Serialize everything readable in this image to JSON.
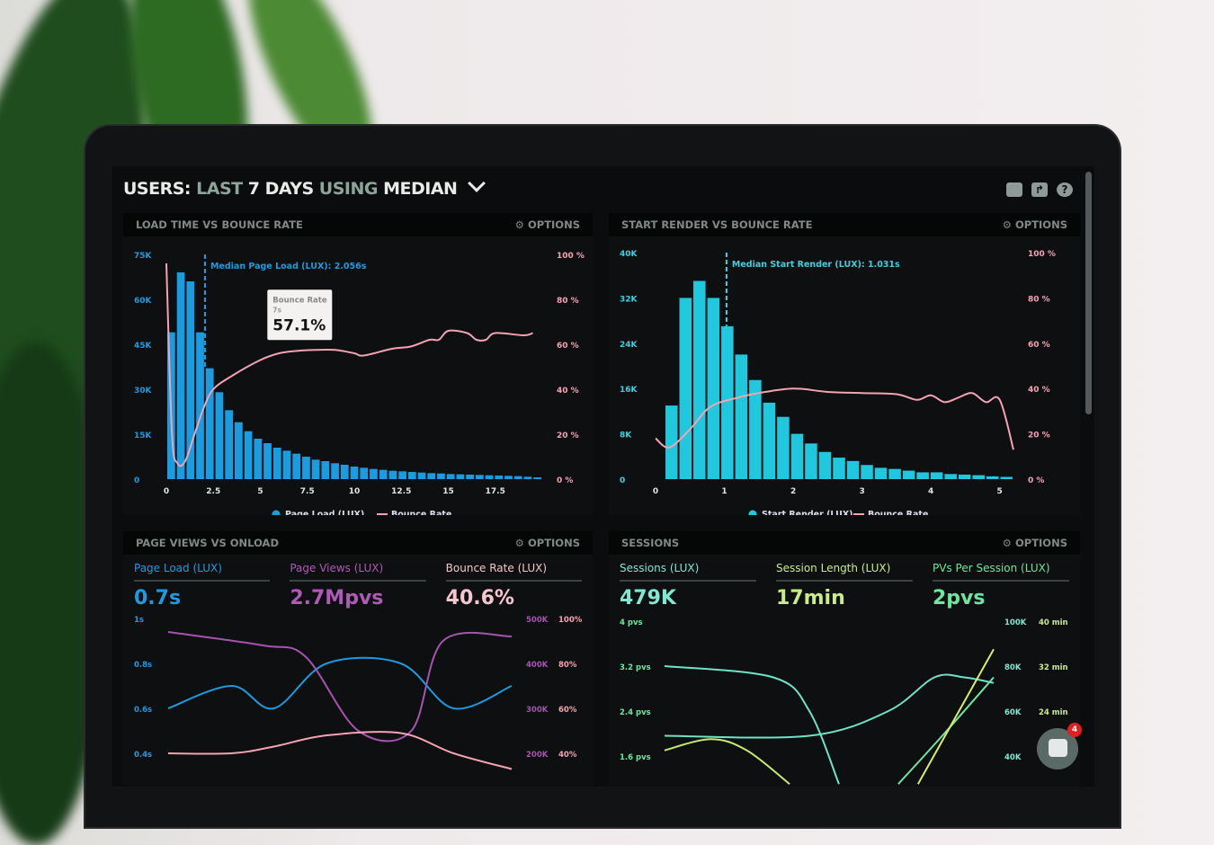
{
  "header": {
    "title_a": "USERS:",
    "title_b": "LAST",
    "title_c": "7 DAYS",
    "title_d": "USING",
    "title_e": "MEDIAN",
    "icons": [
      "monitor-icon",
      "share-icon",
      "help-icon"
    ]
  },
  "options_label": "OPTIONS",
  "panels": {
    "load": {
      "title": "LOAD TIME VS BOUNCE RATE"
    },
    "render": {
      "title": "START RENDER VS BOUNCE RATE"
    },
    "pageviews": {
      "title": "PAGE VIEWS VS ONLOAD",
      "kpis": [
        {
          "label": "Page Load (LUX)",
          "value": "0.7s",
          "color": "#1e9be0"
        },
        {
          "label": "Page Views (LUX)",
          "value": "2.7Mpvs",
          "color": "#b05ab8"
        },
        {
          "label": "Bounce Rate (LUX)",
          "value": "40.6%",
          "color": "#f6c6d0"
        }
      ]
    },
    "sessions": {
      "title": "SESSIONS",
      "kpis": [
        {
          "label": "Sessions (LUX)",
          "value": "479K",
          "color": "#7fe8d2"
        },
        {
          "label": "Session Length (LUX)",
          "value": "17min",
          "color": "#c9ec8a"
        },
        {
          "label": "PVs Per Session (LUX)",
          "value": "2pvs",
          "color": "#6ee6a0"
        }
      ]
    }
  },
  "chat": {
    "badge": "4"
  },
  "chart_data": [
    {
      "type": "bar",
      "title": "LOAD TIME VS BOUNCE RATE",
      "xlim": [
        0,
        20
      ],
      "ylim": [
        0,
        75000
      ],
      "y2lim": [
        0,
        100
      ],
      "xticks": [
        "0",
        "2.5",
        "5",
        "7.5",
        "10",
        "12.5",
        "15",
        "17.5"
      ],
      "yticks": [
        "0",
        "15K",
        "30K",
        "45K",
        "60K",
        "75K"
      ],
      "y2ticks": [
        "0 %",
        "20 %",
        "40 %",
        "60 %",
        "80 %",
        "100 %"
      ],
      "legend": [
        "Page Load (LUX)",
        "Bounce Rate"
      ],
      "annotation": "Median Page Load (LUX): 2.056s",
      "median": 2.056,
      "tooltip": {
        "label": "Bounce Rate",
        "x": "7s",
        "value": "57.1%"
      },
      "bar_colors": "#1a9ce0",
      "line_color": "#f4a3b4",
      "bars": [
        49000,
        69000,
        66000,
        49000,
        37000,
        29000,
        23000,
        19000,
        16000,
        13500,
        12000,
        10500,
        9500,
        8500,
        7500,
        6500,
        6000,
        5300,
        4800,
        4200,
        3800,
        3400,
        3100,
        2800,
        2600,
        2400,
        2200,
        2000,
        1900,
        1700,
        1600,
        1500,
        1400,
        1300,
        1200,
        1100,
        1000,
        800,
        600
      ],
      "line": [
        [
          0,
          96
        ],
        [
          0.3,
          20
        ],
        [
          0.6,
          7
        ],
        [
          1,
          8
        ],
        [
          1.5,
          20
        ],
        [
          2,
          32
        ],
        [
          2.5,
          40
        ],
        [
          3.5,
          46
        ],
        [
          5,
          53
        ],
        [
          6,
          56
        ],
        [
          7,
          57.1
        ],
        [
          8,
          57.5
        ],
        [
          9,
          57.5
        ],
        [
          10,
          56
        ],
        [
          10.5,
          55
        ],
        [
          12,
          58
        ],
        [
          13,
          59
        ],
        [
          14,
          62
        ],
        [
          14.5,
          62
        ],
        [
          15,
          66
        ],
        [
          16,
          65
        ],
        [
          16.5,
          62
        ],
        [
          17,
          62
        ],
        [
          17.5,
          65
        ],
        [
          19,
          64
        ],
        [
          19.5,
          65
        ]
      ]
    },
    {
      "type": "bar",
      "title": "START RENDER VS BOUNCE RATE",
      "xlim": [
        0,
        5.2
      ],
      "ylim": [
        0,
        40000
      ],
      "y2lim": [
        0,
        100
      ],
      "xticks": [
        "0",
        "1",
        "2",
        "3",
        "4",
        "5"
      ],
      "yticks": [
        "0",
        "8K",
        "16K",
        "24K",
        "32K",
        "40K"
      ],
      "y2ticks": [
        "0 %",
        "20 %",
        "40 %",
        "60 %",
        "80 %",
        "100 %"
      ],
      "legend": [
        "Start Render (LUX)",
        "Bounce Rate"
      ],
      "annotation": "Median Start Render (LUX): 1.031s",
      "median": 1.031,
      "bar_colors": "#1fc8dc",
      "line_color": "#f4a3b4",
      "bars": [
        13000,
        32000,
        35000,
        32000,
        27000,
        22000,
        17500,
        13500,
        11000,
        8000,
        6300,
        4800,
        3800,
        3200,
        2500,
        2000,
        1800,
        1500,
        1200,
        1200,
        900,
        800,
        700,
        500,
        400
      ],
      "line": [
        [
          0,
          18
        ],
        [
          0.2,
          14
        ],
        [
          0.5,
          22
        ],
        [
          0.8,
          32
        ],
        [
          1.2,
          36
        ],
        [
          1.5,
          38
        ],
        [
          2,
          40
        ],
        [
          2.5,
          38.5
        ],
        [
          3,
          38
        ],
        [
          3.5,
          37.5
        ],
        [
          3.8,
          35
        ],
        [
          4,
          37
        ],
        [
          4.2,
          34
        ],
        [
          4.4,
          36
        ],
        [
          4.6,
          38
        ],
        [
          4.8,
          34
        ],
        [
          5,
          35
        ],
        [
          5.2,
          13
        ]
      ]
    },
    {
      "type": "line",
      "title": "PAGE VIEWS VS ONLOAD",
      "ylim": [
        0.4,
        1
      ],
      "yticks": [
        "0.4s",
        "0.6s",
        "0.8s",
        "1s"
      ],
      "y2ticks": [
        "200K",
        "300K",
        "400K",
        "500K"
      ],
      "y3ticks": [
        "40%",
        "60%",
        "80%",
        "100%"
      ],
      "series": [
        {
          "color": "#1e9be0",
          "values": [
            0.6,
            0.7,
            0.6,
            0.8,
            0.8,
            0.6,
            0.7
          ]
        },
        {
          "color": "#a554b0",
          "values": [
            470000,
            440000,
            415000,
            250000,
            250000,
            450000,
            460000
          ],
          "axis": "y2"
        },
        {
          "color": "#f4a3b4",
          "values": [
            40,
            40,
            43,
            48,
            49,
            40,
            33
          ],
          "axis": "y3"
        }
      ]
    },
    {
      "type": "line",
      "title": "SESSIONS",
      "ylim": [
        1.6,
        4
      ],
      "yticks": [
        "1.6 pvs",
        "2.4 pvs",
        "3.2 pvs",
        "4 pvs"
      ],
      "y2ticks": [
        "40K",
        "60K",
        "80K",
        "100K"
      ],
      "y3ticks": [
        "24 min",
        "32 min",
        "40 min"
      ],
      "series": [
        {
          "color": "#6fe3c5",
          "values": [
            [
              0,
              3.2
            ],
            [
              3.3,
              3.0
            ],
            [
              4.4,
              2.4
            ],
            [
              5.3,
              1.1
            ]
          ]
        },
        {
          "color": "#6fe3c5",
          "values": [
            [
              0,
              1.96
            ],
            [
              4.4,
              1.96
            ],
            [
              6.8,
              2.4
            ],
            [
              8.2,
              3.0
            ],
            [
              9.1,
              3.0
            ],
            [
              10,
              2.9
            ]
          ]
        },
        {
          "color": "#c7e870",
          "values": [
            [
              0,
              1.7
            ],
            [
              1.4,
              1.9
            ],
            [
              2.5,
              1.7
            ],
            [
              3.8,
              1.1
            ]
          ]
        },
        {
          "color": "#70e3a8",
          "values": [
            [
              7.1,
              1.1
            ],
            [
              8.5,
              2.0
            ],
            [
              10,
              3.0
            ]
          ]
        },
        {
          "color": "#d9ec6a",
          "values": [
            [
              7.7,
              1.1
            ],
            [
              10,
              3.5
            ]
          ]
        }
      ]
    }
  ]
}
